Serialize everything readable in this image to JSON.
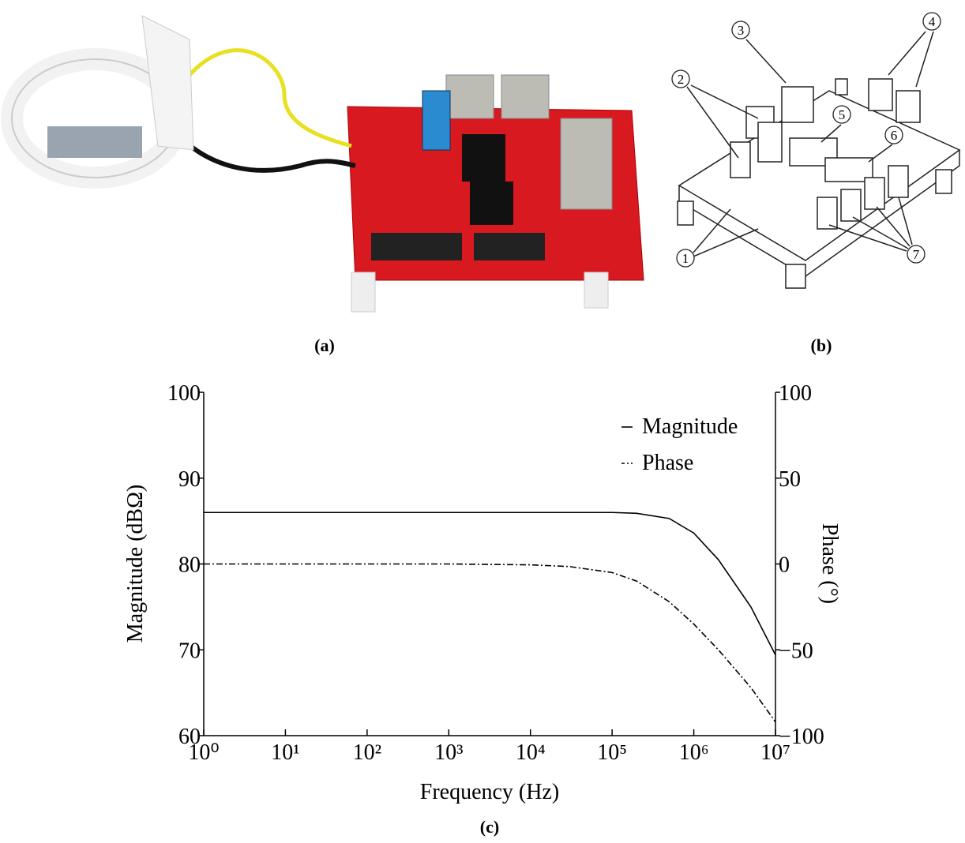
{
  "panels": {
    "a": {
      "label": "(a)"
    },
    "b": {
      "label": "(b)",
      "callouts": [
        "1",
        "2",
        "3",
        "4",
        "5",
        "6",
        "7"
      ]
    },
    "c": {
      "label": "(c)"
    }
  },
  "chart_data": {
    "type": "line",
    "xlabel": "Frequency (Hz)",
    "ylabel": "Magnitude (dBΩ)",
    "y2label": "Phase (°)",
    "xscale": "log",
    "x": [
      1,
      10,
      100,
      1000,
      10000,
      30000,
      100000,
      200000,
      500000,
      1000000,
      2000000,
      5000000,
      10000000
    ],
    "xlim": [
      1,
      10000000
    ],
    "xticks": [
      {
        "value": 1,
        "label": "10⁰"
      },
      {
        "value": 10,
        "label": "10¹"
      },
      {
        "value": 100,
        "label": "10²"
      },
      {
        "value": 1000,
        "label": "10³"
      },
      {
        "value": 10000,
        "label": "10⁴"
      },
      {
        "value": 100000,
        "label": "10⁵"
      },
      {
        "value": 1000000,
        "label": "10⁶"
      },
      {
        "value": 10000000,
        "label": "10⁷"
      }
    ],
    "ylim": [
      60,
      100
    ],
    "yticks": [
      60,
      70,
      80,
      90,
      100
    ],
    "y2lim": [
      -100,
      100
    ],
    "y2ticks": [
      {
        "value": -100,
        "label": "−100"
      },
      {
        "value": -50,
        "label": "−50"
      },
      0,
      50,
      100
    ],
    "legend": "upper right",
    "series": [
      {
        "name": "Magnitude",
        "color": "#000000",
        "linestyle": "solid",
        "values": [
          86,
          86,
          86,
          86,
          86,
          86,
          86,
          85.9,
          85.3,
          83.6,
          80.5,
          75,
          69.4
        ]
      },
      {
        "name": "Phase",
        "color": "#000000",
        "linestyle": "dashdot",
        "axis": "y2",
        "values": [
          0,
          0,
          0,
          0,
          -0.5,
          -1.5,
          -5,
          -10,
          -22,
          -35,
          -50,
          -72,
          -92
        ]
      }
    ]
  }
}
